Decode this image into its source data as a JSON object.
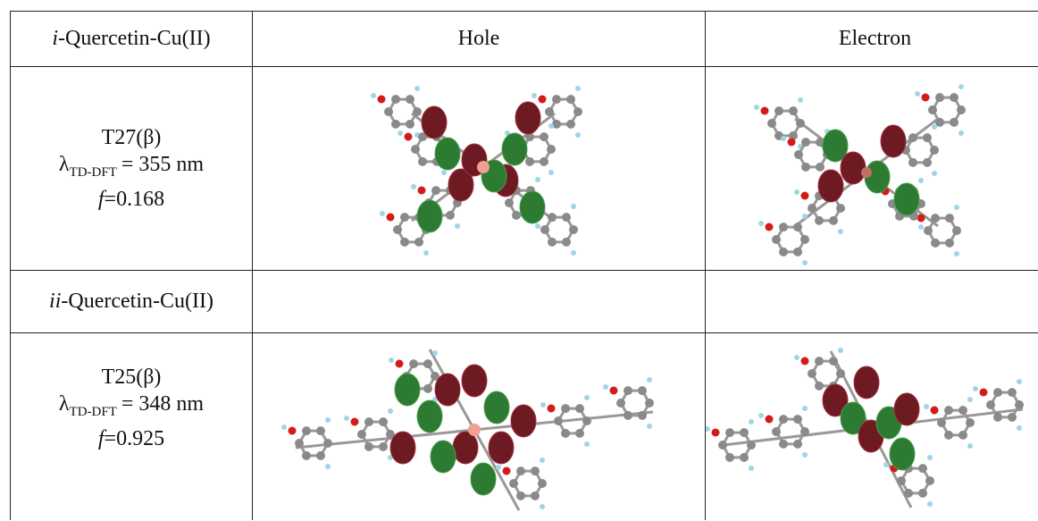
{
  "header": {
    "label_prefix": "i",
    "label": "-Quercetin-Cu(II)",
    "hole": "Hole",
    "electron": "Electron"
  },
  "rows": [
    {
      "state": "T27(β)",
      "lambda": "λ",
      "lambda_sub": "TD-DFT",
      "lambda_value": "= 355 nm",
      "f": "f",
      "f_value": "=0.168"
    },
    {
      "section_prefix": "ii",
      "section": "-Quercetin-Cu(II)"
    },
    {
      "state": "T25(β)",
      "lambda": "λ",
      "lambda_sub": "TD-DFT",
      "lambda_value": "= 348 nm",
      "f": "f",
      "f_value": "=0.925"
    }
  ]
}
